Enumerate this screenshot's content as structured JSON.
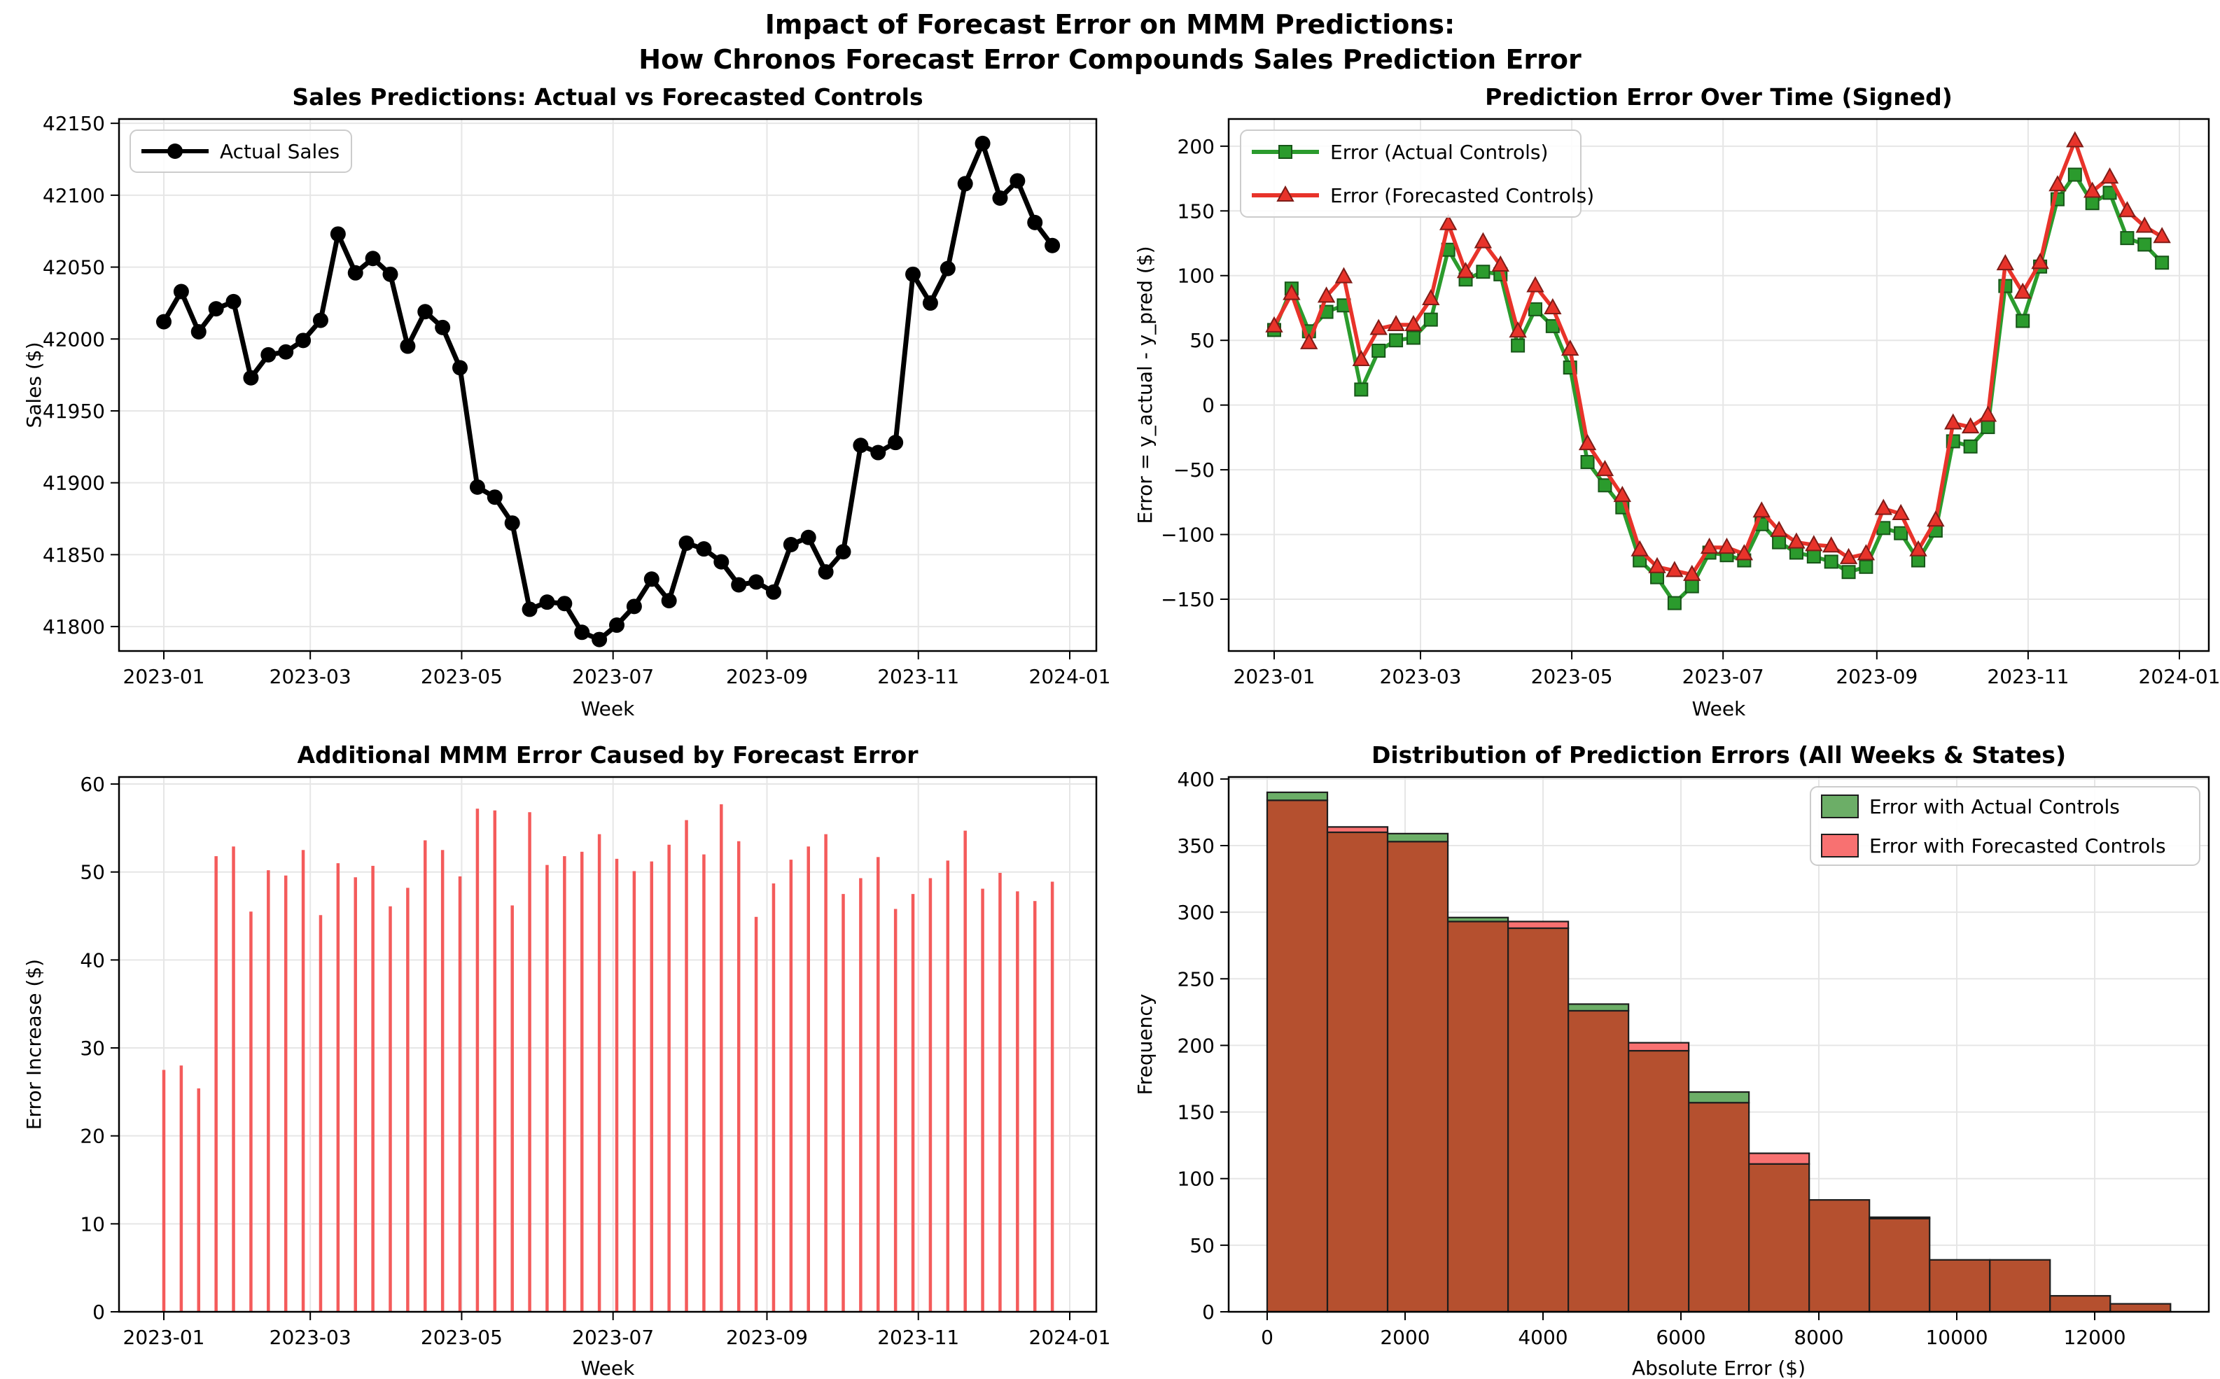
{
  "figure": {
    "title_line1": "Impact of Forecast Error on MMM Predictions:",
    "title_line2": "How Chronos Forecast Error Compounds Sales Prediction Error"
  },
  "chart_data": [
    {
      "id": "sales-predictions",
      "type": "line",
      "title": "Sales Predictions: Actual vs Forecasted Controls",
      "xlabel": "Week",
      "ylabel": "Sales ($)",
      "x_tick_labels": [
        "2023-01",
        "2023-03",
        "2023-05",
        "2023-07",
        "2023-09",
        "2023-11",
        "2024-01"
      ],
      "y_ticks": [
        41800,
        41850,
        41900,
        41950,
        42000,
        42050,
        42100,
        42150
      ],
      "ylim": [
        41783,
        42153
      ],
      "legend_position": "top-left",
      "series": [
        {
          "name": "Actual Sales",
          "color": "#000000",
          "marker": "circle",
          "values": [
            42012,
            42033,
            42005,
            42021,
            42026,
            41973,
            41989,
            41991,
            41999,
            42013,
            42073,
            42046,
            42056,
            42045,
            41995,
            42019,
            42008,
            41980,
            41897,
            41890,
            41872,
            41812,
            41817,
            41816,
            41796,
            41791,
            41801,
            41814,
            41833,
            41818,
            41858,
            41854,
            41845,
            41829,
            41831,
            41824,
            41857,
            41862,
            41838,
            41852,
            41926,
            41921,
            41928,
            42045,
            42025,
            42049,
            42108,
            42136,
            42098,
            42110,
            42081,
            42065
          ]
        }
      ]
    },
    {
      "id": "prediction-error-over-time",
      "type": "line",
      "title": "Prediction Error Over Time (Signed)",
      "xlabel": "Week",
      "ylabel": "Error = y_actual - y_pred ($)",
      "x_tick_labels": [
        "2023-01",
        "2023-03",
        "2023-05",
        "2023-07",
        "2023-09",
        "2023-11",
        "2024-01"
      ],
      "y_ticks": [
        -150,
        -100,
        -50,
        0,
        50,
        100,
        150,
        200
      ],
      "ylim": [
        -190,
        221
      ],
      "legend_position": "top-left",
      "series": [
        {
          "name": "Error (Actual Controls)",
          "color": "#2b9b2d",
          "marker": "square",
          "values": [
            58,
            90,
            57,
            72,
            77,
            12,
            42,
            50,
            52,
            66,
            120,
            97,
            103,
            101,
            46,
            74,
            61,
            29,
            -44,
            -62,
            -79,
            -120,
            -133,
            -153,
            -140,
            -114,
            -116,
            -120,
            -92,
            -106,
            -114,
            -117,
            -121,
            -129,
            -125,
            -95,
            -99,
            -120,
            -97,
            -28,
            -32,
            -17,
            92,
            65,
            107,
            159,
            178,
            156,
            164,
            129,
            124,
            110
          ]
        },
        {
          "name": "Error (Forecasted Controls)",
          "color": "#e8332a",
          "marker": "triangle",
          "values": [
            61,
            86,
            48,
            84,
            99,
            35,
            59,
            62,
            62,
            82,
            140,
            103,
            126,
            108,
            57,
            92,
            75,
            43,
            -30,
            -50,
            -70,
            -112,
            -125,
            -128,
            -131,
            -110,
            -110,
            -115,
            -82,
            -97,
            -106,
            -108,
            -109,
            -118,
            -115,
            -80,
            -84,
            -112,
            -89,
            -14,
            -17,
            -8,
            109,
            87,
            110,
            170,
            204,
            165,
            176,
            150,
            138,
            130
          ]
        }
      ]
    },
    {
      "id": "additional-mmm-error",
      "type": "stem-bar",
      "title": "Additional MMM Error Caused by Forecast Error",
      "xlabel": "Week",
      "ylabel": "Error Increase ($)",
      "x_tick_labels": [
        "2023-01",
        "2023-03",
        "2023-05",
        "2023-07",
        "2023-09",
        "2023-11",
        "2024-01"
      ],
      "y_ticks": [
        0,
        10,
        20,
        30,
        40,
        50,
        60
      ],
      "ylim": [
        0,
        60.8
      ],
      "bar_color": "#f45b5b",
      "values": [
        27.5,
        28.0,
        25.4,
        51.8,
        52.9,
        45.5,
        50.2,
        49.6,
        52.5,
        45.1,
        51.0,
        49.4,
        50.7,
        46.1,
        48.2,
        53.6,
        52.5,
        49.5,
        57.2,
        57.0,
        46.2,
        56.8,
        50.8,
        51.8,
        52.3,
        54.3,
        51.5,
        50.1,
        51.2,
        53.1,
        55.9,
        52.0,
        57.7,
        53.5,
        44.9,
        48.7,
        51.4,
        52.9,
        54.3,
        47.5,
        49.3,
        51.7,
        45.8,
        47.5,
        49.3,
        51.3,
        54.7,
        48.1,
        49.9,
        47.8,
        46.7,
        48.9
      ]
    },
    {
      "id": "error-distribution",
      "type": "histogram",
      "title": "Distribution of Prediction Errors (All Weeks & States)",
      "xlabel": "Absolute Error ($)",
      "ylabel": "Frequency",
      "x_ticks": [
        0,
        2000,
        4000,
        6000,
        8000,
        10000,
        12000
      ],
      "y_ticks": [
        0,
        50,
        100,
        150,
        200,
        250,
        300,
        350,
        400
      ],
      "ylim": [
        0,
        401.5
      ],
      "bin_start": 0,
      "bin_width": 873.3,
      "legend_position": "top-right",
      "colors": {
        "green_fill": "#6cae67",
        "red_fill": "#f87171",
        "overlap_fill": "#b5502f",
        "edge": "#1d1d1d"
      },
      "series": [
        {
          "name": "Error with Actual Controls",
          "color": "#6cae67",
          "values": [
            390,
            360,
            359,
            296,
            288,
            231,
            196,
            165,
            111,
            84,
            71,
            39,
            39,
            12,
            6
          ]
        },
        {
          "name": "Error with Forecasted Controls",
          "color": "#f87171",
          "values": [
            384,
            364,
            353,
            293,
            293,
            226,
            202,
            157,
            119,
            84,
            70,
            39,
            39,
            12,
            6
          ]
        }
      ]
    }
  ]
}
